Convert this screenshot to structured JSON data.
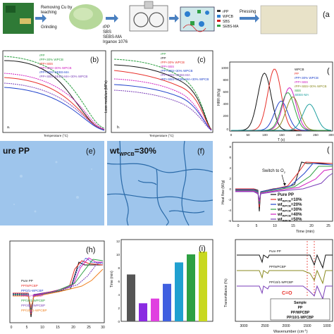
{
  "process": {
    "step1_l1": "Removing Cu by",
    "step1_l2": "leaching",
    "step1_l3": "Grinding",
    "mix_l1": "rPP",
    "mix_l2": "SBS",
    "mix_l3": "SEBS-MA",
    "mix_l4": "Irganox 1076",
    "leg_rpp": "rPP",
    "leg_wpcb": "WPCB",
    "leg_sbs": "SBS",
    "leg_sebs": "SEBS-MA",
    "pressing": "Pressing",
    "panel_label": "(a"
  },
  "panel_b": {
    "label": "(b)",
    "sub": "a.",
    "xlabel": "Temperature (°C)",
    "legend": [
      "rPP",
      "rPP+30% WPCB",
      "rPP+SBS",
      "rPP+SBS+30% WPCB",
      "rPP+SBS+SEBS-MA",
      "rPP+SBS+SEBS-MA+30% WPCB"
    ]
  },
  "panel_c": {
    "label": "(c)",
    "sub": "b.",
    "ylabel": "Loss modulus (MPa)",
    "xlabel": "Temperature (°C)",
    "legend": [
      "rPP",
      "rPP",
      "rPP+30% WPCB",
      "rPP+SBS",
      "rPP+SBS+30% WPCB",
      "rPP+SBS+SEBS-MA",
      "rPP+SBS+SEBS-MA+30% WPCB"
    ]
  },
  "panel_d": {
    "label": "(",
    "ylabel": "HRR (W/g)",
    "xlabel": "T (s)",
    "yticks": [
      "1000",
      "800",
      "600",
      "400",
      "200",
      "0"
    ],
    "xticks": [
      "0",
      "50",
      "100",
      "150",
      "200",
      "250",
      "300"
    ],
    "legend": [
      "WPCB",
      "PP",
      "rPP+30% WPCB",
      "rPP+SBS",
      "rPP+SBS+30% WPCB",
      "SBS",
      "SEBS-MA"
    ]
  },
  "panel_e": {
    "label": "(e)",
    "title": "ure PP"
  },
  "panel_f": {
    "label": "(f)",
    "title_main": "wt",
    "title_sub": "WPCB",
    "title_tail": "=30%"
  },
  "panel_g": {
    "label": "(",
    "ylabel": "Heat flow (W/g)",
    "xlabel": "Time (min)",
    "annotation": "Switch to O",
    "annotation_sub": "2",
    "xticks": [
      "0",
      "5",
      "10",
      "15",
      "20",
      "25"
    ],
    "yticks": [
      "8",
      "6",
      "4",
      "2",
      "0",
      "-2",
      "-4",
      "-6"
    ],
    "legend": [
      {
        "main": "Pure PP",
        "sub": "",
        "tail": ""
      },
      {
        "main": "wt",
        "sub": "WPCB",
        "tail": "=10%"
      },
      {
        "main": "wt",
        "sub": "WPCB",
        "tail": "=20%"
      },
      {
        "main": "wt",
        "sub": "WPCB",
        "tail": "=30%"
      },
      {
        "main": "wt",
        "sub": "WPCB",
        "tail": "=40%"
      },
      {
        "main": "wt",
        "sub": "WPCB",
        "tail": "=50%"
      }
    ]
  },
  "panel_h": {
    "label": "(h)",
    "xticks": [
      "0",
      "5",
      "10",
      "15",
      "20",
      "25",
      "30"
    ],
    "legend": [
      "Pure PP",
      "PP/WPCBP",
      "PP/2/1-WPCBP",
      "PP/5/1-WPCBP",
      "PP/10/1-WPCBP",
      "PP/30/1-WPCBP",
      "PP/100/1-WPCBP"
    ]
  },
  "panel_i": {
    "label": "(i)",
    "ylabel": "Time (min)",
    "yticks": [
      "12",
      "10",
      "8",
      "6",
      "4",
      "2",
      "0"
    ],
    "values": [
      7.0,
      2.7,
      3.4,
      5.6,
      8.8,
      10.0,
      10.4
    ]
  },
  "panel_j": {
    "ylabel": "Transmittance (%)",
    "xlabel": "Wavenumber (cm",
    "xlabel_sup": "-1",
    "xlabel_tail": ")",
    "xticks": [
      "3000",
      "2500",
      "2000",
      "1500",
      "1000"
    ],
    "curves": [
      "Pure PP",
      "PP/WPCBP",
      "PP/10/1-WPCBP"
    ],
    "annotation": "C=O",
    "table_title": "Sample",
    "table_rows": [
      "PP",
      "PP/WPCBP",
      "PP/10/1-WPCBP"
    ]
  },
  "colors": {
    "black": "#111111",
    "red": "#e8302a",
    "blue": "#2244cc",
    "green": "#2ea043",
    "magenta": "#d020c0",
    "purple": "#7a3fb8",
    "orange": "#f08020",
    "olive": "#8a8a20",
    "teal": "#20a0a0",
    "micro_bg": "#9ec5ec"
  },
  "chart_data": [
    {
      "type": "bar",
      "title": "",
      "xlabel": "",
      "ylabel": "Time (min)",
      "categories": [
        "",
        "",
        "",
        "",
        "",
        "",
        ""
      ],
      "values": [
        7.0,
        2.7,
        3.4,
        5.6,
        8.8,
        10.0,
        10.4
      ],
      "ylim": [
        0,
        12
      ]
    },
    {
      "type": "line",
      "title": "",
      "xlabel": "T (s)",
      "ylabel": "HRR (W/g)",
      "xlim": [
        0,
        300
      ],
      "ylim": [
        0,
        1100
      ],
      "series": [
        {
          "name": "WPCB",
          "peak_x": 100,
          "peak_y": 940
        },
        {
          "name": "PP",
          "peak_x": 130,
          "peak_y": 1010
        },
        {
          "name": "rPP+30% WPCB",
          "peak_x": 150,
          "peak_y": 480
        },
        {
          "name": "rPP+SBS",
          "peak_x": 175,
          "peak_y": 700
        },
        {
          "name": "rPP+SBS+30% WPCB",
          "peak_x": 185,
          "peak_y": 550
        },
        {
          "name": "SBS",
          "peak_x": 170,
          "peak_y": 620
        },
        {
          "name": "SEBS-MA",
          "peak_x": 235,
          "peak_y": 430
        }
      ]
    }
  ]
}
